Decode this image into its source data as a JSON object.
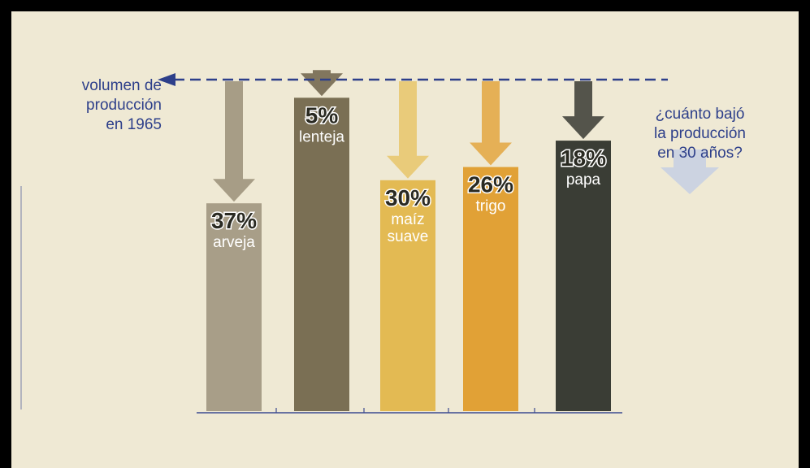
{
  "colors": {
    "page_bg": "#efe9d4",
    "annotation_blue": "#2d3f8a",
    "axis_blue": "#3c4a90",
    "faint_arrow": "#c3cde3"
  },
  "annotations": {
    "left_lines": [
      "volumen de",
      "producción",
      "en 1965"
    ],
    "right_lines": [
      "¿cuánto bajó",
      "la producción",
      "en 30 años?"
    ]
  },
  "chart_data": {
    "type": "bar",
    "baseline_label": "volumen de producción en 1965",
    "question": "¿cuánto bajó la producción en 30 años?",
    "categories": [
      "arveja",
      "lenteja",
      "maíz suave",
      "trigo",
      "papa"
    ],
    "category_lines": [
      [
        "arveja"
      ],
      [
        "lenteja"
      ],
      [
        "maíz",
        "suave"
      ],
      [
        "trigo"
      ],
      [
        "papa"
      ]
    ],
    "values": [
      37,
      5,
      30,
      26,
      18
    ],
    "value_labels": [
      "37%",
      "5%",
      "30%",
      "26%",
      "18%"
    ],
    "unit": "%",
    "ylim": [
      0,
      100
    ],
    "grid": false,
    "legend": "none",
    "colors": [
      "#a89e88",
      "#7a6f54",
      "#e3ba53",
      "#e1a136",
      "#3a3d35"
    ],
    "arrow_colors": [
      "#9a8f78",
      "#6d6249",
      "#e8c56a",
      "#e3a640",
      "#383a33"
    ]
  }
}
